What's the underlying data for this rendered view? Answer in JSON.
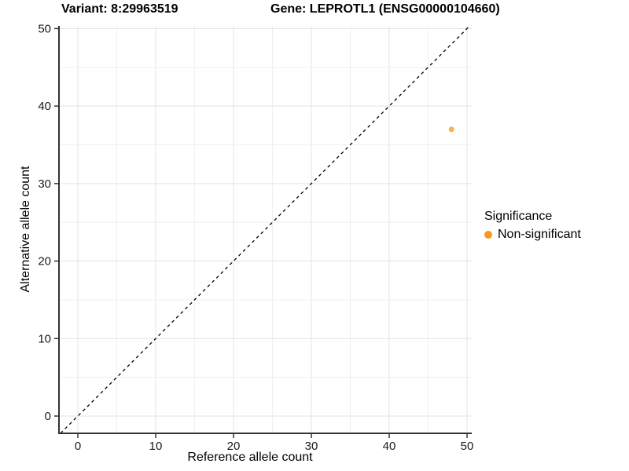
{
  "title": {
    "variant": "Variant: 8:29963519",
    "gene": "Gene: LEPROTL1 (ENSG00000104660)"
  },
  "chart_data": {
    "type": "scatter",
    "xlabel": "Reference allele count",
    "ylabel": "Alternative allele count",
    "xlim": [
      0,
      50
    ],
    "ylim": [
      0,
      50
    ],
    "x_ticks": [
      0,
      10,
      20,
      30,
      40,
      50
    ],
    "y_ticks": [
      0,
      10,
      20,
      30,
      40,
      50
    ],
    "minor_step": 5,
    "grid": true,
    "identity_line": {
      "style": "dashed",
      "color": "#000000"
    },
    "series": [
      {
        "name": "Non-significant",
        "color": "#F8981D",
        "point_opacity": 0.75,
        "points": [
          {
            "x": 48,
            "y": 37
          }
        ]
      }
    ],
    "legend": {
      "title": "Significance",
      "position": "right",
      "entries": [
        {
          "label": "Non-significant",
          "color": "#F8981D"
        }
      ]
    },
    "colors": {
      "axis_line": "#333333",
      "tick_label": "#1a1a1a",
      "grid_major": "#e3e3e3",
      "grid_minor": "#f0f0f0"
    }
  }
}
